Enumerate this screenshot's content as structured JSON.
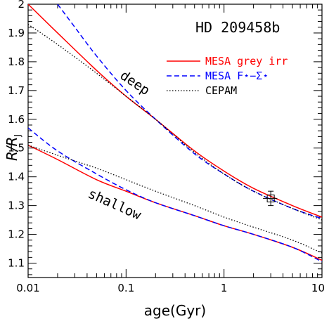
{
  "chart_data": {
    "type": "line",
    "title": "HD 209458b",
    "xlabel": "age(Gyr)",
    "ylabel_main": "R/R",
    "ylabel_sub": "J",
    "xscale": "log",
    "xlim": [
      0.01,
      10
    ],
    "ylim": [
      1.05,
      2.0
    ],
    "x_ticks": [
      {
        "value": 0.01,
        "label": "0.01"
      },
      {
        "value": 0.1,
        "label": "0.1"
      },
      {
        "value": 1,
        "label": "1"
      },
      {
        "value": 10,
        "label": "10"
      }
    ],
    "y_ticks": [
      {
        "value": 1.1,
        "label": "1.1"
      },
      {
        "value": 1.2,
        "label": "1.2"
      },
      {
        "value": 1.3,
        "label": "1.3"
      },
      {
        "value": 1.4,
        "label": "1.4"
      },
      {
        "value": 1.5,
        "label": "1.5"
      },
      {
        "value": 1.6,
        "label": "1.6"
      },
      {
        "value": 1.7,
        "label": "1.7"
      },
      {
        "value": 1.8,
        "label": "1.8"
      },
      {
        "value": 1.9,
        "label": "1.9"
      },
      {
        "value": 2.0,
        "label": "2"
      }
    ],
    "legend_placement": "top-right",
    "legend": [
      {
        "label": "MESA grey irr",
        "color": "#ff0000",
        "style": "solid"
      },
      {
        "label": "MESA F⋆−Σ⋆",
        "color": "#0000ff",
        "style": "dashed"
      },
      {
        "label": "CEPAM",
        "color": "#000000",
        "style": "dotted"
      }
    ],
    "annotations": [
      {
        "text": "deep",
        "x": 0.085,
        "y": 1.745,
        "rotation": 34
      },
      {
        "text": "shallow",
        "x": 0.04,
        "y": 1.33,
        "rotation": 24
      }
    ],
    "series": [
      {
        "group": "deep",
        "color": "#ff0000",
        "style": "solid",
        "x": [
          0.01,
          0.02,
          0.05,
          0.1,
          0.2,
          0.5,
          1,
          2,
          5,
          10
        ],
        "y": [
          2.0,
          1.9,
          1.77,
          1.68,
          1.6,
          1.49,
          1.42,
          1.36,
          1.3,
          1.26
        ]
      },
      {
        "group": "deep",
        "color": "#0000ff",
        "style": "dashed",
        "x": [
          0.02,
          0.03,
          0.05,
          0.1,
          0.2,
          0.5,
          1,
          2,
          5,
          10
        ],
        "y": [
          2.0,
          1.92,
          1.82,
          1.7,
          1.6,
          1.48,
          1.41,
          1.35,
          1.29,
          1.255
        ]
      },
      {
        "group": "deep",
        "color": "#000000",
        "style": "dotted",
        "x": [
          0.01,
          0.02,
          0.05,
          0.1,
          0.2,
          0.5,
          1,
          2,
          5,
          10
        ],
        "y": [
          1.93,
          1.86,
          1.76,
          1.68,
          1.6,
          1.485,
          1.41,
          1.35,
          1.29,
          1.25
        ]
      },
      {
        "group": "shallow",
        "color": "#ff0000",
        "style": "solid",
        "x": [
          0.01,
          0.02,
          0.05,
          0.1,
          0.2,
          0.5,
          1,
          2,
          5,
          10
        ],
        "y": [
          1.51,
          1.46,
          1.39,
          1.35,
          1.31,
          1.265,
          1.23,
          1.2,
          1.155,
          1.11
        ]
      },
      {
        "group": "shallow",
        "color": "#0000ff",
        "style": "dashed",
        "x": [
          0.01,
          0.02,
          0.05,
          0.1,
          0.2,
          0.5,
          1,
          2,
          5,
          10
        ],
        "y": [
          1.57,
          1.49,
          1.41,
          1.355,
          1.31,
          1.265,
          1.23,
          1.2,
          1.155,
          1.105
        ]
      },
      {
        "group": "shallow",
        "color": "#000000",
        "style": "dotted",
        "x": [
          0.01,
          0.02,
          0.05,
          0.1,
          0.2,
          0.5,
          1,
          2,
          5,
          10
        ],
        "y": [
          1.51,
          1.475,
          1.43,
          1.39,
          1.35,
          1.3,
          1.26,
          1.225,
          1.18,
          1.135
        ]
      }
    ],
    "observation": {
      "x": 3.0,
      "y": 1.325,
      "yerr_low": 0.025,
      "yerr_high": 0.025,
      "xerr_low": 0.5,
      "xerr_high": 0.5
    }
  }
}
